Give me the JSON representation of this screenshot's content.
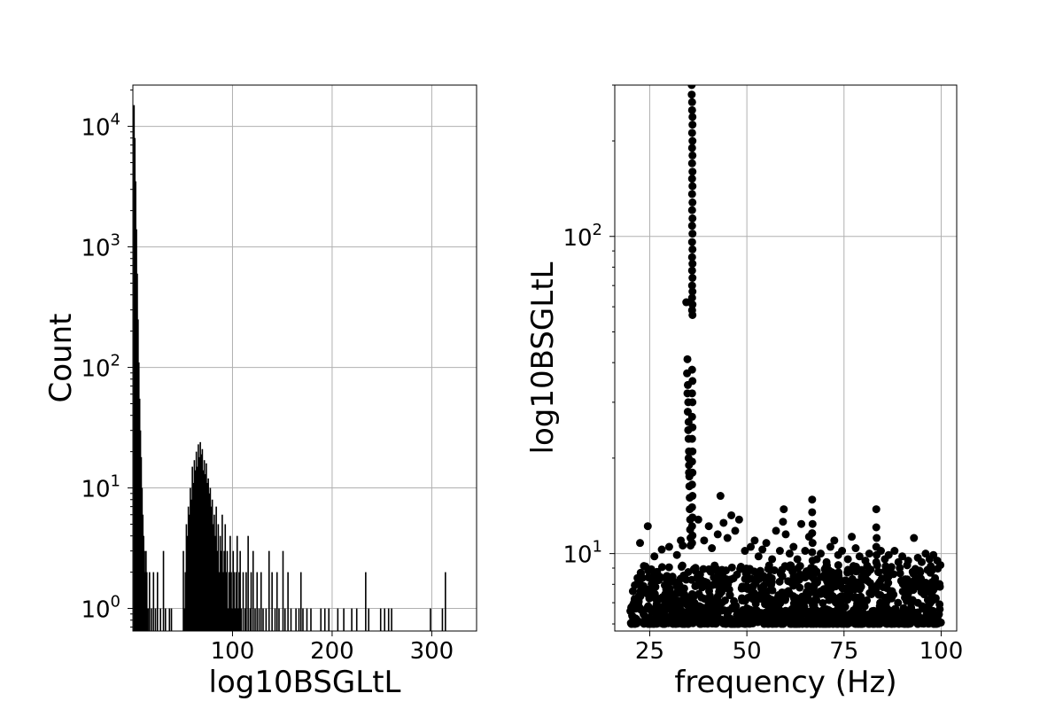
{
  "chart_data": [
    {
      "type": "bar",
      "subtype": "histogram",
      "xlabel": "log10BSGLtL",
      "ylabel": "Count",
      "ylog": true,
      "xlim": [
        0,
        345
      ],
      "ylim": [
        0.65,
        22000
      ],
      "grid": true,
      "color": "#000000",
      "x_ticks": [
        {
          "value": 100,
          "label": "100"
        },
        {
          "value": 200,
          "label": "200"
        },
        {
          "value": 300,
          "label": "300"
        }
      ],
      "y_ticks": [
        {
          "value": 1,
          "base": "10",
          "exp": "0"
        },
        {
          "value": 10,
          "base": "10",
          "exp": "1"
        },
        {
          "value": 100,
          "base": "10",
          "exp": "2"
        },
        {
          "value": 1000,
          "base": "10",
          "exp": "3"
        },
        {
          "value": 10000,
          "base": "10",
          "exp": "4"
        }
      ],
      "bin_width": 0.8,
      "bins": [
        {
          "x": 0.5,
          "count": 15000
        },
        {
          "x": 1.3,
          "count": 8000
        },
        {
          "x": 2.1,
          "count": 3500
        },
        {
          "x": 2.9,
          "count": 1400
        },
        {
          "x": 3.7,
          "count": 600
        },
        {
          "x": 4.5,
          "count": 250
        },
        {
          "x": 5.3,
          "count": 110
        },
        {
          "x": 6.1,
          "count": 55
        },
        {
          "x": 6.9,
          "count": 30
        },
        {
          "x": 7.7,
          "count": 18
        },
        {
          "x": 8.5,
          "count": 10
        },
        {
          "x": 9.3,
          "count": 6
        },
        {
          "x": 10.1,
          "count": 4
        },
        {
          "x": 10.9,
          "count": 3
        },
        {
          "x": 11.7,
          "count": 2
        },
        {
          "x": 12.5,
          "count": 3
        },
        {
          "x": 13.3,
          "count": 2
        },
        {
          "x": 14.5,
          "count": 1
        },
        {
          "x": 16,
          "count": 2
        },
        {
          "x": 18,
          "count": 1
        },
        {
          "x": 20,
          "count": 2
        },
        {
          "x": 22,
          "count": 1
        },
        {
          "x": 24,
          "count": 2
        },
        {
          "x": 27,
          "count": 1
        },
        {
          "x": 30,
          "count": 3
        },
        {
          "x": 32,
          "count": 1
        },
        {
          "x": 36,
          "count": 1
        },
        {
          "x": 38,
          "count": 1
        },
        {
          "x": 50,
          "count": 3
        },
        {
          "x": 51,
          "count": 1
        },
        {
          "x": 52,
          "count": 2
        },
        {
          "x": 53,
          "count": 5
        },
        {
          "x": 54,
          "count": 4
        },
        {
          "x": 55,
          "count": 7
        },
        {
          "x": 56,
          "count": 6
        },
        {
          "x": 57,
          "count": 10
        },
        {
          "x": 58,
          "count": 8
        },
        {
          "x": 59,
          "count": 15
        },
        {
          "x": 60,
          "count": 11
        },
        {
          "x": 61,
          "count": 17
        },
        {
          "x": 62,
          "count": 14
        },
        {
          "x": 63,
          "count": 20
        },
        {
          "x": 64,
          "count": 15
        },
        {
          "x": 65,
          "count": 23
        },
        {
          "x": 66,
          "count": 18
        },
        {
          "x": 67,
          "count": 24
        },
        {
          "x": 68,
          "count": 19
        },
        {
          "x": 69,
          "count": 21
        },
        {
          "x": 70,
          "count": 14
        },
        {
          "x": 71,
          "count": 17
        },
        {
          "x": 72,
          "count": 13
        },
        {
          "x": 73,
          "count": 16
        },
        {
          "x": 74,
          "count": 11
        },
        {
          "x": 75,
          "count": 12
        },
        {
          "x": 76,
          "count": 9
        },
        {
          "x": 77,
          "count": 10
        },
        {
          "x": 78,
          "count": 7
        },
        {
          "x": 79,
          "count": 8
        },
        {
          "x": 80,
          "count": 5
        },
        {
          "x": 81,
          "count": 6
        },
        {
          "x": 82,
          "count": 4
        },
        {
          "x": 83,
          "count": 7
        },
        {
          "x": 84,
          "count": 3
        },
        {
          "x": 85,
          "count": 5
        },
        {
          "x": 86,
          "count": 2
        },
        {
          "x": 87,
          "count": 4
        },
        {
          "x": 88,
          "count": 3
        },
        {
          "x": 89,
          "count": 6
        },
        {
          "x": 90,
          "count": 2
        },
        {
          "x": 91,
          "count": 3
        },
        {
          "x": 92,
          "count": 5
        },
        {
          "x": 93,
          "count": 2
        },
        {
          "x": 94,
          "count": 3
        },
        {
          "x": 95,
          "count": 1
        },
        {
          "x": 96,
          "count": 2
        },
        {
          "x": 97,
          "count": 4
        },
        {
          "x": 98,
          "count": 2
        },
        {
          "x": 99,
          "count": 1
        },
        {
          "x": 100,
          "count": 3
        },
        {
          "x": 101,
          "count": 2
        },
        {
          "x": 102,
          "count": 1
        },
        {
          "x": 103,
          "count": 2
        },
        {
          "x": 104,
          "count": 4
        },
        {
          "x": 105,
          "count": 1
        },
        {
          "x": 106,
          "count": 2
        },
        {
          "x": 107,
          "count": 3
        },
        {
          "x": 108,
          "count": 1
        },
        {
          "x": 110,
          "count": 2
        },
        {
          "x": 112,
          "count": 1
        },
        {
          "x": 113,
          "count": 2
        },
        {
          "x": 115,
          "count": 4
        },
        {
          "x": 117,
          "count": 1
        },
        {
          "x": 118,
          "count": 2
        },
        {
          "x": 120,
          "count": 3
        },
        {
          "x": 122,
          "count": 1
        },
        {
          "x": 124,
          "count": 2
        },
        {
          "x": 126,
          "count": 1
        },
        {
          "x": 128,
          "count": 2
        },
        {
          "x": 130,
          "count": 1
        },
        {
          "x": 133,
          "count": 1
        },
        {
          "x": 136,
          "count": 3
        },
        {
          "x": 139,
          "count": 2
        },
        {
          "x": 142,
          "count": 1
        },
        {
          "x": 144,
          "count": 2
        },
        {
          "x": 146,
          "count": 1
        },
        {
          "x": 150,
          "count": 3
        },
        {
          "x": 152,
          "count": 1
        },
        {
          "x": 155,
          "count": 2
        },
        {
          "x": 158,
          "count": 1
        },
        {
          "x": 163,
          "count": 1
        },
        {
          "x": 166,
          "count": 1
        },
        {
          "x": 168,
          "count": 2
        },
        {
          "x": 170,
          "count": 1
        },
        {
          "x": 174,
          "count": 1
        },
        {
          "x": 178,
          "count": 1
        },
        {
          "x": 188,
          "count": 1
        },
        {
          "x": 192,
          "count": 1
        },
        {
          "x": 196,
          "count": 1
        },
        {
          "x": 205,
          "count": 1
        },
        {
          "x": 211,
          "count": 1
        },
        {
          "x": 219,
          "count": 1
        },
        {
          "x": 224,
          "count": 1
        },
        {
          "x": 233,
          "count": 2
        },
        {
          "x": 236,
          "count": 1
        },
        {
          "x": 248,
          "count": 1
        },
        {
          "x": 252,
          "count": 1
        },
        {
          "x": 256,
          "count": 1
        },
        {
          "x": 259,
          "count": 1
        },
        {
          "x": 298,
          "count": 1
        },
        {
          "x": 310,
          "count": 1
        },
        {
          "x": 313,
          "count": 2
        }
      ]
    },
    {
      "type": "scatter",
      "xlabel": "frequency (Hz)",
      "ylabel": "log10BSGLtL",
      "ylog": true,
      "xlim": [
        16,
        104
      ],
      "ylim": [
        5.7,
        300
      ],
      "grid": true,
      "color": "#000000",
      "x_ticks": [
        {
          "value": 25,
          "label": "25"
        },
        {
          "value": 50,
          "label": "50"
        },
        {
          "value": 75,
          "label": "75"
        },
        {
          "value": 100,
          "label": "100"
        }
      ],
      "y_ticks": [
        {
          "value": 10,
          "base": "10",
          "exp": "1"
        },
        {
          "value": 100,
          "base": "10",
          "exp": "2"
        }
      ],
      "points": [
        [
          22.5,
          10.8
        ],
        [
          24.5,
          12.2
        ],
        [
          26.2,
          9.8
        ],
        [
          28.1,
          10.3
        ],
        [
          30.0,
          10.5
        ],
        [
          32.0,
          9.9
        ],
        [
          33.0,
          11.0
        ],
        [
          33.5,
          10.6
        ],
        [
          34.4,
          62
        ],
        [
          34.7,
          41
        ],
        [
          34.8,
          34
        ],
        [
          34.9,
          30
        ],
        [
          35.0,
          26
        ],
        [
          35.0,
          23
        ],
        [
          35.1,
          21
        ],
        [
          35.1,
          19
        ],
        [
          35.2,
          17.5
        ],
        [
          35.2,
          16.3
        ],
        [
          35.3,
          15
        ],
        [
          35.3,
          13.8
        ],
        [
          35.4,
          12.8
        ],
        [
          35.4,
          11.9
        ],
        [
          35.5,
          11.2
        ],
        [
          35.5,
          10.6
        ],
        [
          34.6,
          37
        ],
        [
          34.7,
          32
        ],
        [
          34.8,
          28
        ],
        [
          34.9,
          24.5
        ],
        [
          35.0,
          20
        ],
        [
          35.1,
          18
        ],
        [
          35.8,
          300
        ],
        [
          35.8,
          280
        ],
        [
          35.9,
          265
        ],
        [
          35.9,
          250
        ],
        [
          36.0,
          238
        ],
        [
          36.0,
          225
        ],
        [
          35.9,
          212
        ],
        [
          36.0,
          200
        ],
        [
          35.9,
          190
        ],
        [
          36.0,
          180
        ],
        [
          35.9,
          170
        ],
        [
          36.0,
          160
        ],
        [
          35.9,
          152
        ],
        [
          36.0,
          144
        ],
        [
          35.9,
          136
        ],
        [
          36.0,
          128
        ],
        [
          35.9,
          121
        ],
        [
          36.0,
          114
        ],
        [
          35.9,
          108
        ],
        [
          36.0,
          102
        ],
        [
          35.9,
          96
        ],
        [
          36.0,
          91
        ],
        [
          35.9,
          86
        ],
        [
          36.0,
          82
        ],
        [
          35.9,
          78
        ],
        [
          36.0,
          74
        ],
        [
          35.9,
          70
        ],
        [
          36.0,
          67
        ],
        [
          35.9,
          64
        ],
        [
          36.0,
          61
        ],
        [
          35.9,
          58.5
        ],
        [
          36.0,
          56.5
        ],
        [
          35.9,
          38
        ],
        [
          36.0,
          35
        ],
        [
          35.9,
          32
        ],
        [
          36.0,
          30
        ],
        [
          35.9,
          27
        ],
        [
          36.0,
          25
        ],
        [
          35.9,
          23
        ],
        [
          36.0,
          21
        ],
        [
          35.9,
          19.5
        ],
        [
          36.0,
          18
        ],
        [
          35.9,
          16.5
        ],
        [
          36.0,
          15.2
        ],
        [
          35.9,
          14
        ],
        [
          36.0,
          13
        ],
        [
          35.9,
          12.2
        ],
        [
          36.0,
          11.4
        ],
        [
          35.9,
          10.8
        ],
        [
          37.5,
          12.8
        ],
        [
          39.0,
          11.0
        ],
        [
          40.2,
          12.2
        ],
        [
          41.0,
          10.4
        ],
        [
          42.5,
          11.5
        ],
        [
          43.2,
          15.2
        ],
        [
          44.0,
          12.5
        ],
        [
          45.0,
          11.2
        ],
        [
          46.0,
          13.2
        ],
        [
          47.0,
          11.8
        ],
        [
          48.0,
          12.8
        ],
        [
          49.5,
          10.2
        ],
        [
          51.0,
          10.5
        ],
        [
          52.0,
          11.0
        ],
        [
          53.0,
          9.8
        ],
        [
          54.0,
          10.3
        ],
        [
          55.0,
          10.8
        ],
        [
          56.5,
          9.6
        ],
        [
          57.5,
          11.8
        ],
        [
          58.5,
          10.2
        ],
        [
          59.3,
          12.6
        ],
        [
          59.5,
          13.8
        ],
        [
          60.0,
          11.5
        ],
        [
          61.0,
          10.0
        ],
        [
          62.0,
          10.5
        ],
        [
          63.0,
          9.6
        ],
        [
          64.0,
          12.4
        ],
        [
          65.0,
          10.2
        ],
        [
          66.0,
          11.3
        ],
        [
          66.8,
          14.8
        ],
        [
          66.8,
          13.5
        ],
        [
          66.9,
          12.4
        ],
        [
          66.8,
          11.6
        ],
        [
          66.9,
          10.8
        ],
        [
          66.8,
          10.1
        ],
        [
          66.9,
          9.5
        ],
        [
          66.8,
          9.0
        ],
        [
          68.0,
          9.6
        ],
        [
          69.0,
          10.0
        ],
        [
          70.5,
          9.4
        ],
        [
          71.5,
          10.5
        ],
        [
          72.5,
          11.0
        ],
        [
          73.5,
          9.9
        ],
        [
          74.5,
          10.2
        ],
        [
          76.0,
          9.6
        ],
        [
          77.0,
          11.3
        ],
        [
          78.0,
          10.4
        ],
        [
          79.0,
          9.8
        ],
        [
          80.5,
          9.5
        ],
        [
          81.5,
          10.0
        ],
        [
          83.3,
          13.8
        ],
        [
          83.3,
          12.1
        ],
        [
          83.4,
          11.2
        ],
        [
          83.3,
          10.5
        ],
        [
          83.4,
          9.9
        ],
        [
          83.3,
          9.4
        ],
        [
          84.5,
          10.2
        ],
        [
          85.5,
          9.6
        ],
        [
          86.5,
          9.9
        ],
        [
          88.0,
          10.2
        ],
        [
          89.0,
          9.4
        ],
        [
          90.0,
          9.8
        ],
        [
          91.5,
          9.5
        ],
        [
          93.0,
          11.2
        ],
        [
          94.0,
          9.7
        ],
        [
          95.0,
          9.4
        ],
        [
          96.0,
          10.0
        ],
        [
          97.0,
          9.6
        ],
        [
          98.0,
          9.9
        ],
        [
          99.0,
          9.5
        ],
        [
          99.8,
          9.2
        ]
      ],
      "dense_band": {
        "x_range": [
          20,
          100
        ],
        "y_range": [
          6.0,
          9.2
        ],
        "count": 1200
      }
    }
  ]
}
